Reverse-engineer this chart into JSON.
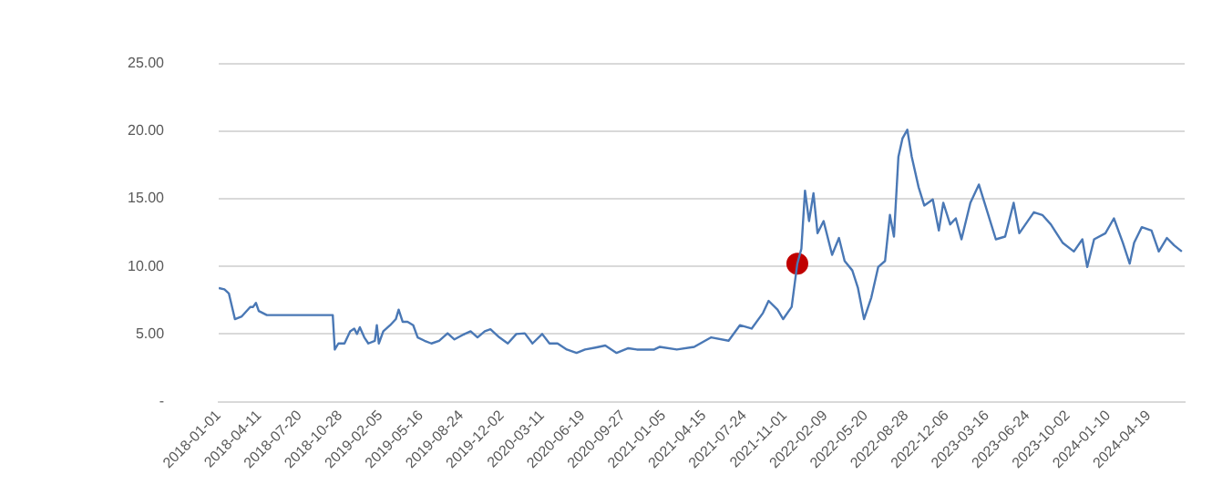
{
  "chart_data": {
    "type": "line",
    "xlim": [
      "2018-01-01",
      "2024-07-17"
    ],
    "xticks": [
      "2018-01-01",
      "2018-04-11",
      "2018-07-20",
      "2018-10-28",
      "2019-02-05",
      "2019-05-16",
      "2019-08-24",
      "2019-12-02",
      "2020-03-11",
      "2020-06-19",
      "2020-09-27",
      "2021-01-05",
      "2021-04-15",
      "2021-07-24",
      "2021-11-01",
      "2022-02-09",
      "2022-05-20",
      "2022-08-28",
      "2022-12-06",
      "2023-03-16",
      "2023-06-24",
      "2023-10-02",
      "2024-01-10",
      "2024-04-19"
    ],
    "ylim": [
      0,
      25
    ],
    "yticks": [
      {
        "value": 0,
        "label": "-"
      },
      {
        "value": 5,
        "label": "5.00"
      },
      {
        "value": 10,
        "label": "10.00"
      },
      {
        "value": 15,
        "label": "15.00"
      },
      {
        "value": 20,
        "label": "20.00"
      },
      {
        "value": 25,
        "label": "25.00"
      }
    ],
    "grid": "y",
    "legend": false,
    "marker": "none",
    "line_style": "solid",
    "series": [
      {
        "type": "line",
        "color": "#4a78b5",
        "x": [
          "2018-01-01",
          "2018-01-15",
          "2018-01-26",
          "2018-02-10",
          "2018-02-27",
          "2018-03-20",
          "2018-03-27",
          "2018-04-03",
          "2018-04-10",
          "2018-04-30",
          "2018-10-10",
          "2018-10-15",
          "2018-10-24",
          "2018-11-08",
          "2018-11-22",
          "2018-12-02",
          "2018-12-09",
          "2018-12-16",
          "2018-12-27",
          "2019-01-06",
          "2019-01-22",
          "2019-01-27",
          "2019-02-01",
          "2019-02-12",
          "2019-03-01",
          "2019-03-15",
          "2019-03-22",
          "2019-04-01",
          "2019-04-13",
          "2019-04-27",
          "2019-05-08",
          "2019-05-25",
          "2019-06-11",
          "2019-06-30",
          "2019-07-21",
          "2019-08-07",
          "2019-09-01",
          "2019-09-16",
          "2019-10-03",
          "2019-10-21",
          "2019-11-04",
          "2019-11-26",
          "2019-12-17",
          "2020-01-07",
          "2020-01-28",
          "2020-02-16",
          "2020-03-11",
          "2020-03-29",
          "2020-04-18",
          "2020-05-11",
          "2020-06-04",
          "2020-06-25",
          "2020-07-21",
          "2020-08-14",
          "2020-09-11",
          "2020-10-10",
          "2020-10-31",
          "2020-11-14",
          "2020-12-13",
          "2020-12-27",
          "2021-02-07",
          "2021-03-22",
          "2021-05-03",
          "2021-06-15",
          "2021-07-13",
          "2021-08-11",
          "2021-09-08",
          "2021-09-22",
          "2021-10-14",
          "2021-10-28",
          "2021-11-18",
          "2021-12-02",
          "2021-12-12",
          "2021-12-21",
          "2021-12-31",
          "2022-01-11",
          "2022-01-21",
          "2022-02-05",
          "2022-02-26",
          "2022-03-15",
          "2022-03-29",
          "2022-04-17",
          "2022-05-01",
          "2022-05-16",
          "2022-06-03",
          "2022-06-20",
          "2022-07-07",
          "2022-07-19",
          "2022-07-29",
          "2022-08-09",
          "2022-08-19",
          "2022-08-31",
          "2022-09-11",
          "2022-09-28",
          "2022-10-12",
          "2022-11-02",
          "2022-11-17",
          "2022-11-28",
          "2022-12-15",
          "2022-12-29",
          "2023-01-12",
          "2023-02-03",
          "2023-02-24",
          "2023-03-10",
          "2023-04-07",
          "2023-04-30",
          "2023-05-21",
          "2023-06-04",
          "2023-07-10",
          "2023-07-31",
          "2023-08-21",
          "2023-09-19",
          "2023-10-17",
          "2023-11-07",
          "2023-11-19",
          "2023-12-06",
          "2024-01-03",
          "2024-01-24",
          "2024-02-15",
          "2024-03-03",
          "2024-03-14",
          "2024-04-02",
          "2024-04-26",
          "2024-05-14",
          "2024-06-03",
          "2024-06-21",
          "2024-07-10"
        ],
        "values": [
          8.4,
          8.3,
          8.0,
          6.1,
          6.3,
          7.0,
          7.0,
          7.3,
          6.7,
          6.4,
          6.4,
          3.85,
          4.3,
          4.3,
          5.2,
          5.4,
          5.0,
          5.5,
          4.75,
          4.3,
          4.5,
          5.65,
          4.3,
          5.2,
          5.65,
          6.1,
          6.8,
          5.9,
          5.9,
          5.65,
          4.75,
          4.5,
          4.3,
          4.5,
          5.05,
          4.6,
          5.0,
          5.2,
          4.75,
          5.2,
          5.35,
          4.75,
          4.3,
          5.0,
          5.05,
          4.3,
          5.0,
          4.3,
          4.3,
          3.85,
          3.6,
          3.85,
          4.0,
          4.15,
          3.6,
          3.95,
          3.85,
          3.85,
          3.85,
          4.05,
          3.85,
          4.05,
          4.75,
          4.5,
          5.65,
          5.4,
          6.55,
          7.45,
          6.8,
          6.1,
          7.0,
          10.2,
          11.3,
          15.6,
          13.35,
          15.4,
          12.45,
          13.35,
          10.85,
          12.1,
          10.4,
          9.7,
          8.4,
          6.1,
          7.7,
          9.95,
          10.4,
          13.8,
          12.2,
          18.1,
          19.45,
          20.1,
          18.1,
          15.85,
          14.5,
          14.95,
          12.65,
          14.7,
          13.1,
          13.55,
          12.0,
          14.7,
          16.05,
          14.7,
          12.0,
          12.2,
          14.7,
          12.45,
          14.0,
          13.8,
          13.1,
          11.75,
          11.1,
          12.0,
          9.95,
          12.0,
          12.45,
          13.55,
          11.75,
          10.2,
          11.75,
          12.9,
          12.65,
          11.1,
          12.1,
          11.55,
          11.1
        ]
      },
      {
        "type": "scatter",
        "marker": "circle",
        "color": "#c00000",
        "x": [
          "2021-12-02"
        ],
        "values": [
          10.2
        ]
      }
    ]
  }
}
